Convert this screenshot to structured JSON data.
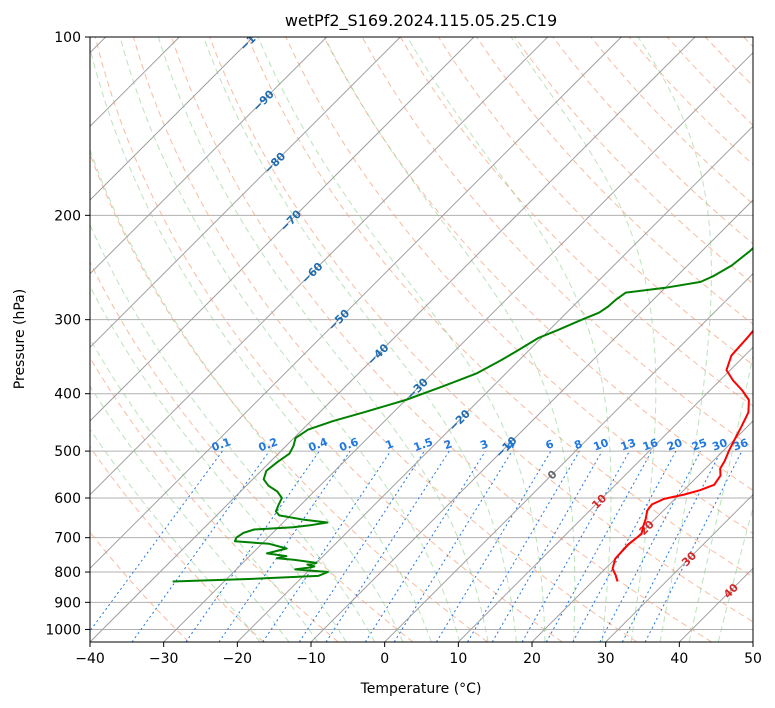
{
  "chart_data": {
    "type": "line",
    "title": "wetPf2_S169.2024.115.05.25.C19",
    "xlabel": "Temperature (°C)",
    "ylabel": "Pressure (hPa)",
    "xlim": [
      -40,
      50
    ],
    "ylim": [
      1050,
      100
    ],
    "y_scale": "log",
    "grid": true,
    "x_ticks": [
      "−40",
      "−30",
      "−20",
      "−10",
      "0",
      "10",
      "20",
      "30",
      "40",
      "50"
    ],
    "y_ticks": [
      "100",
      "200",
      "300",
      "400",
      "500",
      "600",
      "700",
      "800",
      "900",
      "1000"
    ],
    "y_tick_values": [
      100,
      200,
      300,
      400,
      500,
      600,
      700,
      800,
      900,
      1000
    ],
    "series": [
      {
        "color": "#ff0000",
        "points": [
          [
            23.4,
            830
          ],
          [
            22.3,
            810
          ],
          [
            21.0,
            790
          ],
          [
            20.0,
            760
          ],
          [
            19.8,
            720
          ],
          [
            20.2,
            690
          ],
          [
            19.4,
            670
          ],
          [
            18.7,
            650
          ],
          [
            17.8,
            630
          ],
          [
            17.6,
            615
          ],
          [
            18.5,
            602
          ],
          [
            20.6,
            592
          ],
          [
            22.2,
            582
          ],
          [
            23.4,
            570
          ],
          [
            23.0,
            550
          ],
          [
            22.0,
            535
          ],
          [
            21.6,
            520
          ],
          [
            20.8,
            500
          ],
          [
            20.1,
            480
          ],
          [
            19.2,
            455
          ],
          [
            18.2,
            430
          ],
          [
            16.6,
            410
          ],
          [
            14.4,
            395
          ],
          [
            11.8,
            380
          ],
          [
            9.5,
            365
          ],
          [
            8.2,
            345
          ],
          [
            7.9,
            320
          ],
          [
            7.6,
            305
          ],
          [
            7.2,
            290
          ],
          [
            6.7,
            270
          ],
          [
            5.2,
            245
          ],
          [
            3.0,
            225
          ],
          [
            1.5,
            205
          ],
          [
            0.4,
            190
          ],
          [
            0.4,
            178
          ],
          [
            1.1,
            165
          ],
          [
            1.7,
            152
          ],
          [
            2.1,
            140
          ],
          [
            3.4,
            132
          ],
          [
            5.9,
            125
          ],
          [
            8.4,
            118
          ],
          [
            10.9,
            111
          ],
          [
            12.2,
            106
          ],
          [
            13.1,
            100
          ]
        ]
      },
      {
        "color": "#008000",
        "points": [
          [
            -37.0,
            830
          ],
          [
            -27.0,
            822
          ],
          [
            -18.0,
            812
          ],
          [
            -17.2,
            800
          ],
          [
            -22.0,
            792
          ],
          [
            -20.5,
            787
          ],
          [
            -19.8,
            783
          ],
          [
            -21.0,
            777
          ],
          [
            -20.0,
            772
          ],
          [
            -23.5,
            763
          ],
          [
            -26.0,
            758
          ],
          [
            -25.0,
            752
          ],
          [
            -28.0,
            744
          ],
          [
            -26.0,
            730
          ],
          [
            -29.0,
            717
          ],
          [
            -34.0,
            710
          ],
          [
            -34.3,
            700
          ],
          [
            -34.0,
            687
          ],
          [
            -33.0,
            678
          ],
          [
            -28.0,
            672
          ],
          [
            -26.0,
            667
          ],
          [
            -24.0,
            660
          ],
          [
            -27.5,
            653
          ],
          [
            -31.5,
            642
          ],
          [
            -32.5,
            632
          ],
          [
            -33.0,
            617
          ],
          [
            -33.5,
            600
          ],
          [
            -35.0,
            585
          ],
          [
            -37.0,
            572
          ],
          [
            -38.5,
            558
          ],
          [
            -39.3,
            540
          ],
          [
            -39.0,
            522
          ],
          [
            -38.5,
            505
          ],
          [
            -39.0,
            490
          ],
          [
            -39.8,
            475
          ],
          [
            -39.2,
            460
          ],
          [
            -37.0,
            445
          ],
          [
            -34.0,
            430
          ],
          [
            -30.0,
            410
          ],
          [
            -27.0,
            390
          ],
          [
            -24.0,
            370
          ],
          [
            -22.5,
            352
          ],
          [
            -21.5,
            338
          ],
          [
            -20.4,
            322
          ],
          [
            -18.8,
            312
          ],
          [
            -17.0,
            300
          ],
          [
            -15.6,
            292
          ],
          [
            -15.2,
            285
          ],
          [
            -15.1,
            278
          ],
          [
            -14.7,
            270
          ],
          [
            -10.0,
            265
          ],
          [
            -6.0,
            259
          ],
          [
            -5.0,
            253
          ],
          [
            -4.0,
            243
          ],
          [
            -3.5,
            230
          ],
          [
            -3.3,
            215
          ],
          [
            -3.5,
            200
          ],
          [
            -4.0,
            192
          ],
          [
            -5.0,
            185
          ],
          [
            -6.8,
            178
          ],
          [
            -8.5,
            170
          ],
          [
            -9.4,
            160
          ],
          [
            -9.2,
            152
          ],
          [
            -8.0,
            145
          ],
          [
            -7.6,
            138
          ],
          [
            -7.5,
            131
          ],
          [
            -7.0,
            124
          ],
          [
            -6.8,
            117
          ],
          [
            -6.4,
            112
          ],
          [
            -5.4,
            106
          ],
          [
            -3.5,
            100
          ]
        ]
      }
    ],
    "isotherm_labels": [
      "−100",
      "−90",
      "−80",
      "−70",
      "−60",
      "−50",
      "−40",
      "−30",
      "−20",
      "−10",
      "0",
      "10",
      "20",
      "30",
      "40"
    ],
    "isotherm_label_positions": [
      [
        -100,
        100
      ],
      [
        -90,
        128
      ],
      [
        -80,
        163
      ],
      [
        -70,
        204
      ],
      [
        -60,
        250
      ],
      [
        -50,
        300
      ],
      [
        -40,
        343
      ],
      [
        -30,
        392
      ],
      [
        -20,
        443
      ],
      [
        -10,
        492
      ],
      [
        0,
        548
      ],
      [
        10,
        608
      ],
      [
        20,
        673
      ],
      [
        30,
        760
      ],
      [
        40,
        860
      ]
    ],
    "mixing_ratio_labels": [
      "0.1",
      "0.2",
      "0.4",
      "0.6",
      "1",
      "1.5",
      "2",
      "3",
      "4",
      "6",
      "8",
      "10",
      "13",
      "16",
      "20",
      "25",
      "30",
      "36"
    ],
    "mixing_ratio_values": [
      0.1,
      0.2,
      0.4,
      0.6,
      1,
      1.5,
      2,
      3,
      4,
      6,
      8,
      10,
      13,
      16,
      20,
      25,
      30,
      36
    ],
    "colors": {
      "temperature": "#ff0000",
      "dewpoint": "#008000",
      "dry_adiabat": "#f4a582",
      "moist_adiabat": "#8fcf8f",
      "mixing_ratio": "#1f77e0",
      "isotherm": "#a0a0a0",
      "isotherm_label": "#1f6bb0"
    }
  }
}
